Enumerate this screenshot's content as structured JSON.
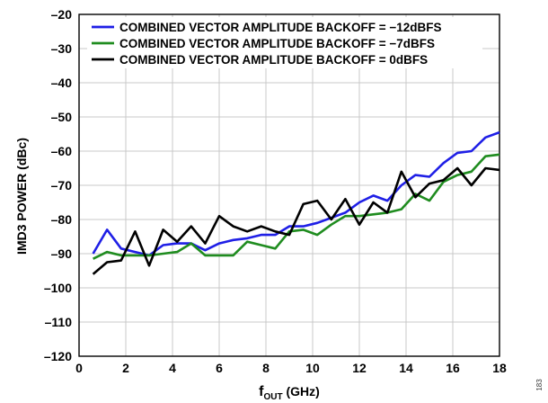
{
  "figure_id": "183",
  "chart_data": {
    "type": "line",
    "title": "",
    "xlabel": "f",
    "xlabel_sub": "OUT",
    "xlabel_unit": " (GHz)",
    "ylabel": "IMD3 POWER (dBc)",
    "xlim": [
      0,
      18
    ],
    "ylim": [
      -120,
      -20
    ],
    "xticks": [
      0,
      2,
      4,
      6,
      8,
      10,
      12,
      14,
      16,
      18
    ],
    "yticks": [
      -20,
      -30,
      -40,
      -50,
      -60,
      -70,
      -80,
      -90,
      -100,
      -110,
      -120
    ],
    "grid": true,
    "legend_position": "top-left",
    "x": [
      0.6,
      1.2,
      1.8,
      2.4,
      3.0,
      3.6,
      4.2,
      4.8,
      5.4,
      6.0,
      6.6,
      7.2,
      7.8,
      8.4,
      9.0,
      9.6,
      10.2,
      10.8,
      11.4,
      12.0,
      12.6,
      13.2,
      13.8,
      14.4,
      15.0,
      15.6,
      16.2,
      16.8,
      17.4,
      18.0
    ],
    "series": [
      {
        "name": "COMBINED VECTOR AMPLITUDE BACKOFF = −12dBFS",
        "color": "#1f1fe6",
        "values": [
          -90,
          -83,
          -88.5,
          -89.5,
          -90.5,
          -87.5,
          -87,
          -87,
          -89,
          -87,
          -86,
          -85.5,
          -84.5,
          -84.5,
          -82,
          -82,
          -81,
          -79.5,
          -78,
          -75,
          -73,
          -74.5,
          -70,
          -67,
          -67.5,
          -63.5,
          -60.5,
          -60,
          -56,
          -54.5
        ]
      },
      {
        "name": "COMBINED VECTOR AMPLITUDE BACKOFF = −7dBFS",
        "color": "#1f8c1f",
        "values": [
          -91.5,
          -89.5,
          -90.5,
          -90.5,
          -90.5,
          -90,
          -89.5,
          -87,
          -90.5,
          -90.5,
          -90.5,
          -86.5,
          -87.5,
          -88.5,
          -83.5,
          -83,
          -84.5,
          -81.5,
          -79,
          -79,
          -78.5,
          -78,
          -77,
          -72.5,
          -74.5,
          -69,
          -67,
          -66,
          -61.5,
          -61
        ]
      },
      {
        "name": "COMBINED VECTOR AMPLITUDE BACKOFF = 0dBFS",
        "color": "#000000",
        "values": [
          -96,
          -92.5,
          -92,
          -83.5,
          -93.5,
          -83,
          -86.5,
          -82,
          -87,
          -79,
          -82,
          -83.5,
          -82,
          -83.5,
          -84.5,
          -75.5,
          -74.5,
          -80,
          -74,
          -81.5,
          -75,
          -78,
          -66,
          -73.5,
          -69.5,
          -68.5,
          -65,
          -70,
          -65,
          -65.5
        ]
      }
    ]
  }
}
